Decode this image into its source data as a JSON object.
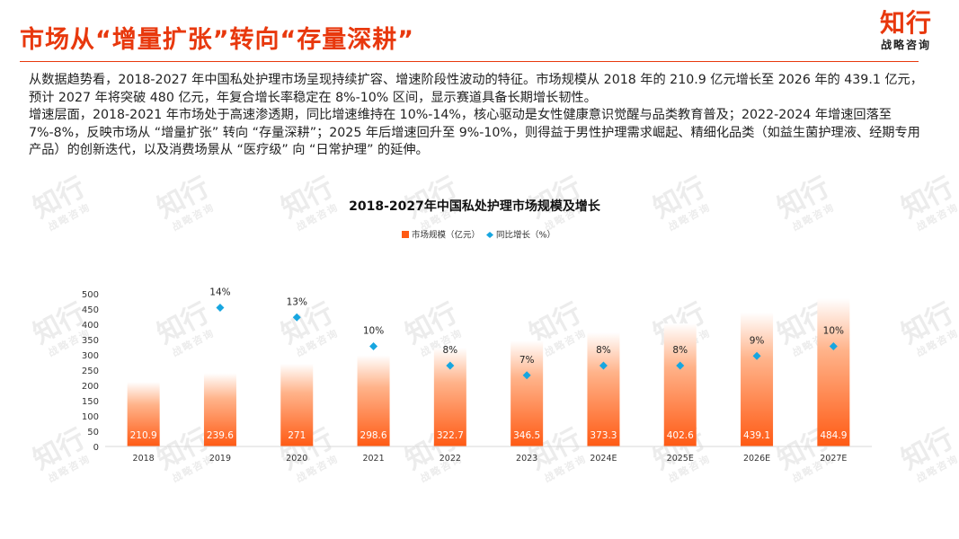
{
  "title": "市场从“增量扩张”转向“存量深耕”",
  "logo": {
    "main": "知行",
    "sub": "战略咨询",
    "watermark_main": "知行",
    "watermark_sub": "战略咨询"
  },
  "paragraphs": [
    "从数据趋势看，2018-2027 年中国私处护理市场呈现持续扩容、增速阶段性波动的特征。市场规模从 2018 年的 210.9 亿元增长至 2026 年的 439.1 亿元，预计 2027 年将突破 480 亿元，年复合增长率稳定在 8%-10% 区间，显示赛道具备长期增长韧性。",
    "增速层面，2018-2021 年市场处于高速渗透期，同比增速维持在 10%-14%，核心驱动是女性健康意识觉醒与品类教育普及；2022-2024 年增速回落至 7%-8%，反映市场从 “增量扩张” 转向 “存量深耕”；2025 年后增速回升至 9%-10%，则得益于男性护理需求崛起、精细化品类（如益生菌护理液、经期专用产品）的创新迭代，以及消费场景从 “医疗级” 向 “日常护理” 的延伸。"
  ],
  "chart_data": {
    "type": "bar",
    "title": "2018-2027年中国私处护理市场规模及增长",
    "categories": [
      "2018",
      "2019",
      "2020",
      "2021",
      "2022",
      "2023",
      "2024E",
      "2025E",
      "2026E",
      "2027E"
    ],
    "series": [
      {
        "name": "市场规模（亿元）",
        "type": "bar",
        "values": [
          210.9,
          239.6,
          271,
          298.6,
          322.7,
          346.5,
          373.3,
          402.6,
          439.1,
          484.9
        ],
        "labels": [
          "210.9",
          "239.6",
          "271",
          "298.6",
          "322.7",
          "346.5",
          "373.3",
          "402.6",
          "439.1",
          "484.9"
        ]
      },
      {
        "name": "同比增长（%）",
        "type": "scatter",
        "values": [
          null,
          14,
          13,
          10,
          8,
          7,
          8,
          8,
          9,
          10
        ],
        "labels": [
          "",
          "14%",
          "13%",
          "10%",
          "8%",
          "7%",
          "8%",
          "8%",
          "9%",
          "10%"
        ]
      }
    ],
    "y_ticks": [
      "500",
      "450",
      "400",
      "350",
      "300",
      "250",
      "200",
      "150",
      "100",
      "50",
      "0"
    ],
    "ylim": [
      0,
      500
    ],
    "legend_position": "top",
    "grid": false,
    "colors": {
      "bar_top": "#ffffff",
      "bar_bottom": "#ff5a14",
      "marker": "#17a6e0",
      "axis": "#d9d9d9"
    }
  }
}
